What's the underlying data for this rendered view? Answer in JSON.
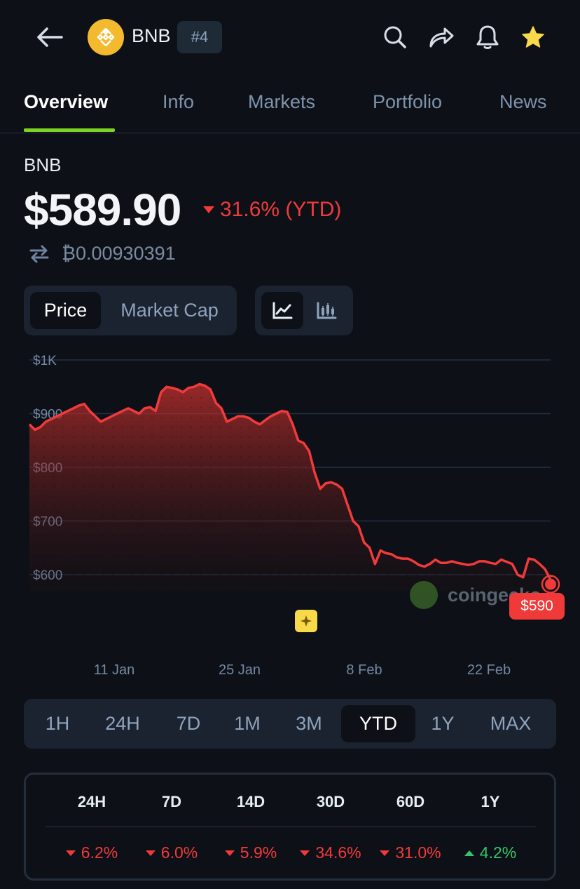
{
  "header": {
    "coin_name": "BNB",
    "rank": "#4"
  },
  "tabs": [
    "Overview",
    "Info",
    "Markets",
    "Portfolio",
    "News"
  ],
  "summary": {
    "coin_label": "BNB",
    "price": "$589.90",
    "change": "31.6% (YTD)",
    "btc_price": "₿0.00930391"
  },
  "toggles": {
    "price_label": "Price",
    "market_cap_label": "Market Cap"
  },
  "chart_data": {
    "type": "area",
    "y_ticks": [
      "$1K",
      "$900",
      "$800",
      "$700",
      "$600"
    ],
    "ylim": [
      580,
      1000
    ],
    "x_ticks": [
      "11 Jan",
      "25 Jan",
      "8 Feb",
      "22 Feb"
    ],
    "current_label": "$590",
    "watermark": "coingecko",
    "series": [
      {
        "values": [
          880,
          870,
          875,
          885,
          890,
          895,
          900,
          905,
          910,
          915,
          918,
          905,
          895,
          885,
          890,
          895,
          900,
          905,
          910,
          905,
          900,
          910,
          912,
          905,
          940,
          950,
          948,
          945,
          940,
          948,
          950,
          955,
          952,
          945,
          920,
          910,
          885,
          890,
          895,
          895,
          892,
          885,
          880,
          888,
          895,
          900,
          905,
          903,
          880,
          850,
          845,
          830,
          790,
          760,
          770,
          772,
          768,
          760,
          730,
          700,
          690,
          660,
          650,
          620,
          645,
          640,
          638,
          632,
          630,
          630,
          625,
          618,
          615,
          620,
          628,
          622,
          622,
          625,
          622,
          620,
          618,
          620,
          625,
          625,
          622,
          620,
          628,
          624,
          620,
          600,
          595,
          630,
          628,
          620,
          610,
          590
        ]
      }
    ],
    "color": "#f23a3a"
  },
  "ranges": [
    "1H",
    "24H",
    "7D",
    "1M",
    "3M",
    "YTD",
    "1Y",
    "MAX"
  ],
  "active_range": "YTD",
  "performance": {
    "headers": [
      "24H",
      "7D",
      "14D",
      "30D",
      "60D",
      "1Y"
    ],
    "values": [
      "6.2%",
      "6.0%",
      "5.9%",
      "34.6%",
      "31.0%",
      "4.2%"
    ],
    "directions": [
      "down",
      "down",
      "down",
      "down",
      "down",
      "up"
    ]
  }
}
